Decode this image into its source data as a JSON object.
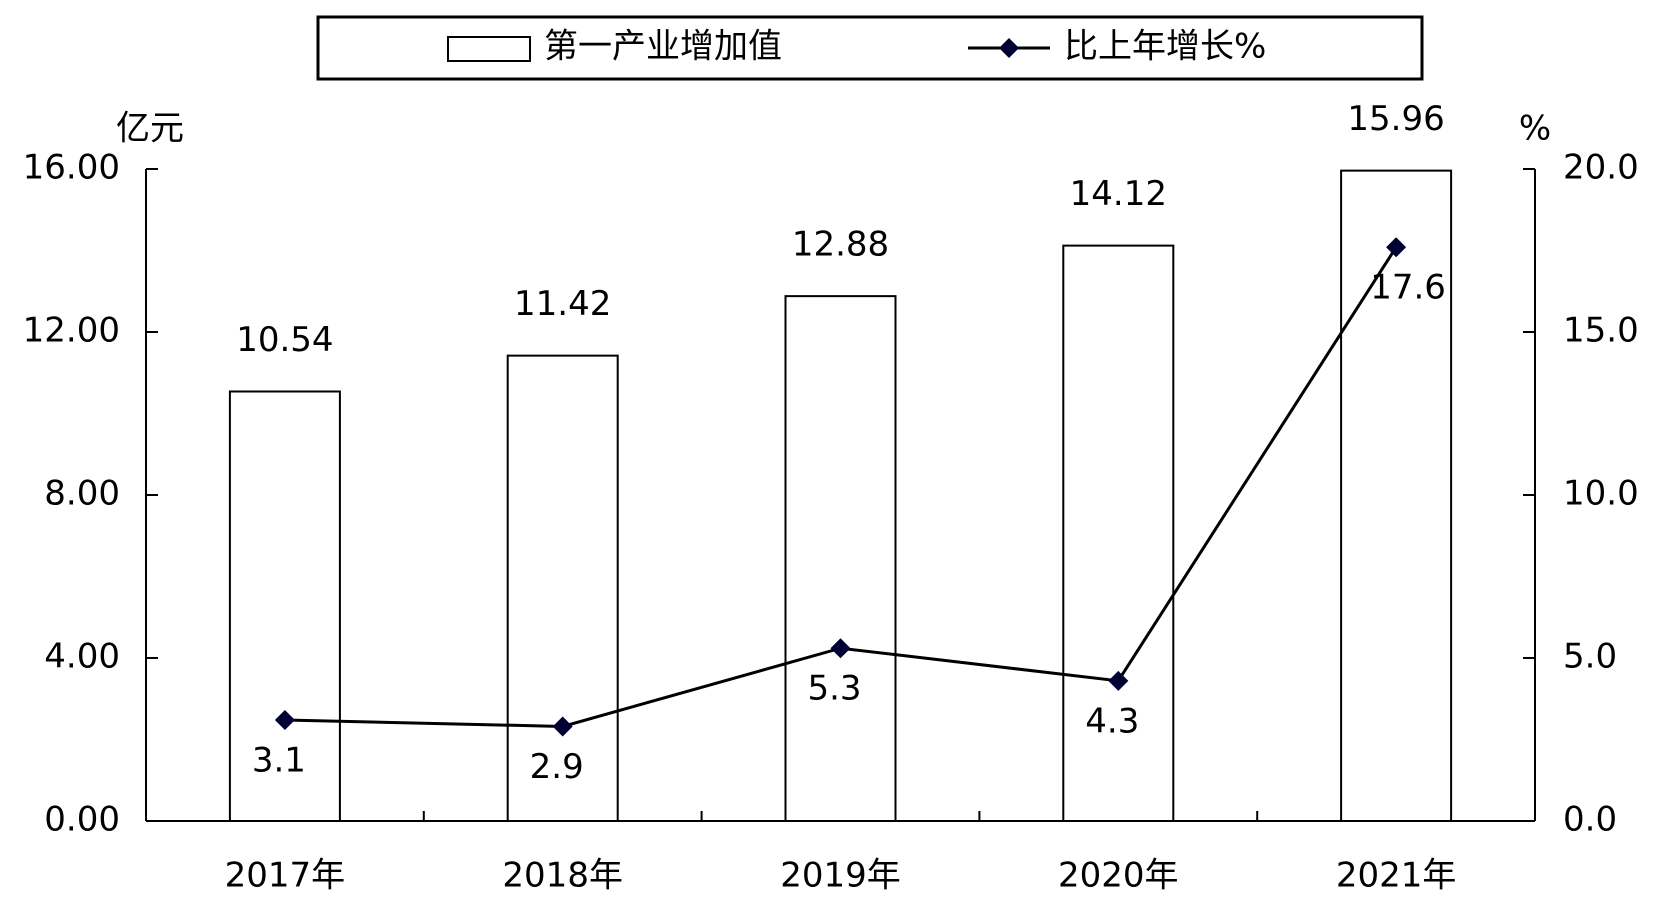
{
  "chart_data": {
    "type": "bar",
    "categories": [
      "2017年",
      "2018年",
      "2019年",
      "2020年",
      "2021年"
    ],
    "y_unit": "亿元",
    "y2_unit": "%",
    "series": [
      {
        "name": "第一产业增加值",
        "type": "bar",
        "color": "#ffffff",
        "values": [
          10.54,
          11.42,
          12.88,
          14.12,
          15.96
        ]
      },
      {
        "name": "比上年增长%",
        "type": "line",
        "axis": "y2",
        "color": "#000033",
        "values": [
          3.1,
          2.9,
          5.3,
          4.3,
          17.6
        ]
      }
    ],
    "ylim": [
      0,
      16
    ],
    "yticks": [
      {
        "value": 0,
        "label": "0.00"
      },
      {
        "value": 4,
        "label": "4.00"
      },
      {
        "value": 8,
        "label": "8.00"
      },
      {
        "value": 12,
        "label": "12.00"
      },
      {
        "value": 16,
        "label": "16.00"
      }
    ],
    "y2lim": [
      0,
      20
    ],
    "y2ticks": [
      {
        "value": 0,
        "label": "0.0"
      },
      {
        "value": 5,
        "label": "5.0"
      },
      {
        "value": 10,
        "label": "10.0"
      },
      {
        "value": 15,
        "label": "15.0"
      },
      {
        "value": 20,
        "label": "20.0"
      }
    ],
    "legend": "top"
  }
}
